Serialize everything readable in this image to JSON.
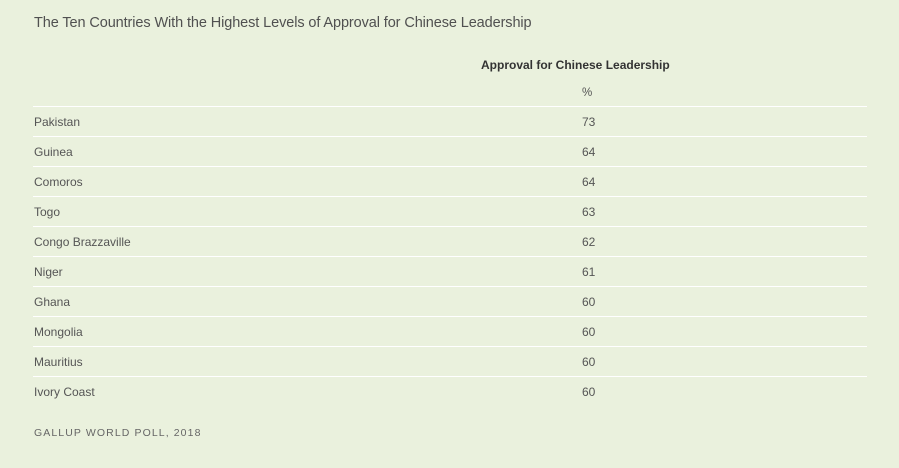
{
  "title": "The Ten Countries With the Highest Levels of Approval for Chinese Leadership",
  "column_header": "Approval for Chinese Leadership",
  "unit": "%",
  "source": "GALLUP WORLD POLL, 2018",
  "rows": [
    {
      "country": "Pakistan",
      "value": "73"
    },
    {
      "country": "Guinea",
      "value": "64"
    },
    {
      "country": "Comoros",
      "value": "64"
    },
    {
      "country": "Togo",
      "value": "63"
    },
    {
      "country": "Congo Brazzaville",
      "value": "62"
    },
    {
      "country": "Niger",
      "value": "61"
    },
    {
      "country": "Ghana",
      "value": "60"
    },
    {
      "country": "Mongolia",
      "value": "60"
    },
    {
      "country": "Mauritius",
      "value": "60"
    },
    {
      "country": "Ivory Coast",
      "value": "60"
    }
  ],
  "chart_data": {
    "type": "table",
    "title": "The Ten Countries With the Highest Levels of Approval for Chinese Leadership",
    "columns": [
      "",
      "Approval for Chinese Leadership"
    ],
    "unit": "%",
    "categories": [
      "Pakistan",
      "Guinea",
      "Comoros",
      "Togo",
      "Congo Brazzaville",
      "Niger",
      "Ghana",
      "Mongolia",
      "Mauritius",
      "Ivory Coast"
    ],
    "values": [
      73,
      64,
      64,
      63,
      62,
      61,
      60,
      60,
      60,
      60
    ],
    "source": "GALLUP WORLD POLL, 2018"
  },
  "colors": {
    "background": "#eaf1dd",
    "divider": "#ffffff",
    "text": "#555555"
  }
}
